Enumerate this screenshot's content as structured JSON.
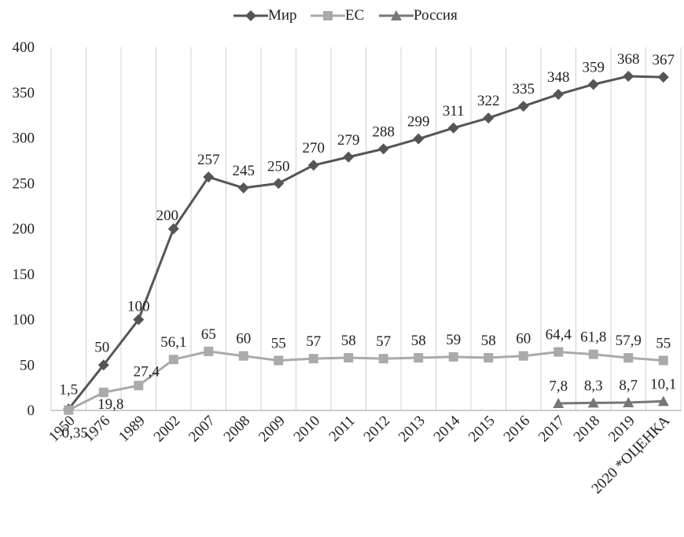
{
  "chart_data": {
    "type": "line",
    "title": "",
    "xlabel": "",
    "ylabel": "",
    "ylim": [
      0,
      400
    ],
    "yticks": [
      0,
      50,
      100,
      150,
      200,
      250,
      300,
      350,
      400
    ],
    "grid": "vertical",
    "legend_position": "top",
    "categories": [
      "1950",
      "1976",
      "1989",
      "2002",
      "2007",
      "2008",
      "2009",
      "2010",
      "2011",
      "2012",
      "2013",
      "2014",
      "2015",
      "2016",
      "2017",
      "2018",
      "2019",
      "2020 *ОЦЕНКА"
    ],
    "series": [
      {
        "name": "Мир",
        "color": "#555555",
        "marker": "diamond",
        "values": [
          1.5,
          50,
          100,
          200,
          257,
          245,
          250,
          270,
          279,
          288,
          299,
          311,
          322,
          335,
          348,
          359,
          368,
          367
        ],
        "labels": [
          "1,5",
          "50",
          "100",
          "200",
          "257",
          "245",
          "250",
          "270",
          "279",
          "288",
          "299",
          "311",
          "322",
          "335",
          "348",
          "359",
          "368",
          "367"
        ]
      },
      {
        "name": "ЕС",
        "color": "#aaaaaa",
        "marker": "square",
        "values": [
          0.35,
          19.8,
          27.4,
          56.1,
          65,
          60,
          55,
          57,
          58,
          57,
          58,
          59,
          58,
          60,
          64.4,
          61.8,
          57.9,
          55
        ],
        "labels": [
          "0,35",
          "19,8",
          "27,4",
          "56,1",
          "65",
          "60",
          "55",
          "57",
          "58",
          "57",
          "58",
          "59",
          "58",
          "60",
          "64,4",
          "61,8",
          "57,9",
          "55"
        ]
      },
      {
        "name": "Россия",
        "color": "#777777",
        "marker": "triangle",
        "values": [
          null,
          null,
          null,
          null,
          null,
          null,
          null,
          null,
          null,
          null,
          null,
          null,
          null,
          null,
          7.8,
          8.3,
          8.7,
          10.1
        ],
        "labels": [
          null,
          null,
          null,
          null,
          null,
          null,
          null,
          null,
          null,
          null,
          null,
          null,
          null,
          null,
          "7,8",
          "8,3",
          "8,7",
          "10,1"
        ]
      }
    ]
  }
}
